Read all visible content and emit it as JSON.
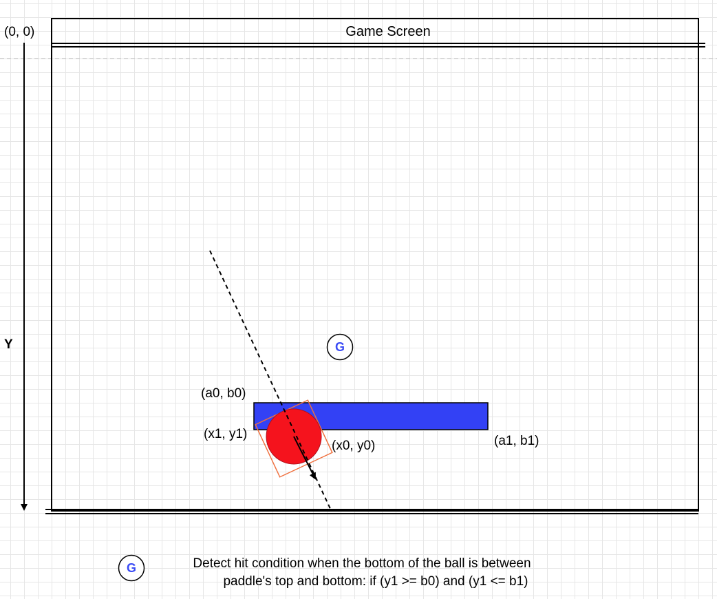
{
  "diagram": {
    "title": "Game Screen",
    "origin_label": "(0, 0)",
    "axis_label": "Y",
    "badge_letter": "G",
    "point_labels": {
      "a0b0": "(a0, b0)",
      "x1y1": "(x1, y1)",
      "x0y0": "(x0, y0)",
      "a1b1": "(a1, b1)"
    },
    "note": {
      "line1": "Detect hit condition when the bottom of the ball is between",
      "line2": "paddle's top  and bottom: if (y1 >= b0) and (y1 <= b1)"
    },
    "colors": {
      "paddle": "#3341f5",
      "ball": "#f5131d",
      "bounding_box": "#f0703e",
      "badge": "#3b4cf5",
      "grid": "#e6e6e6"
    }
  }
}
